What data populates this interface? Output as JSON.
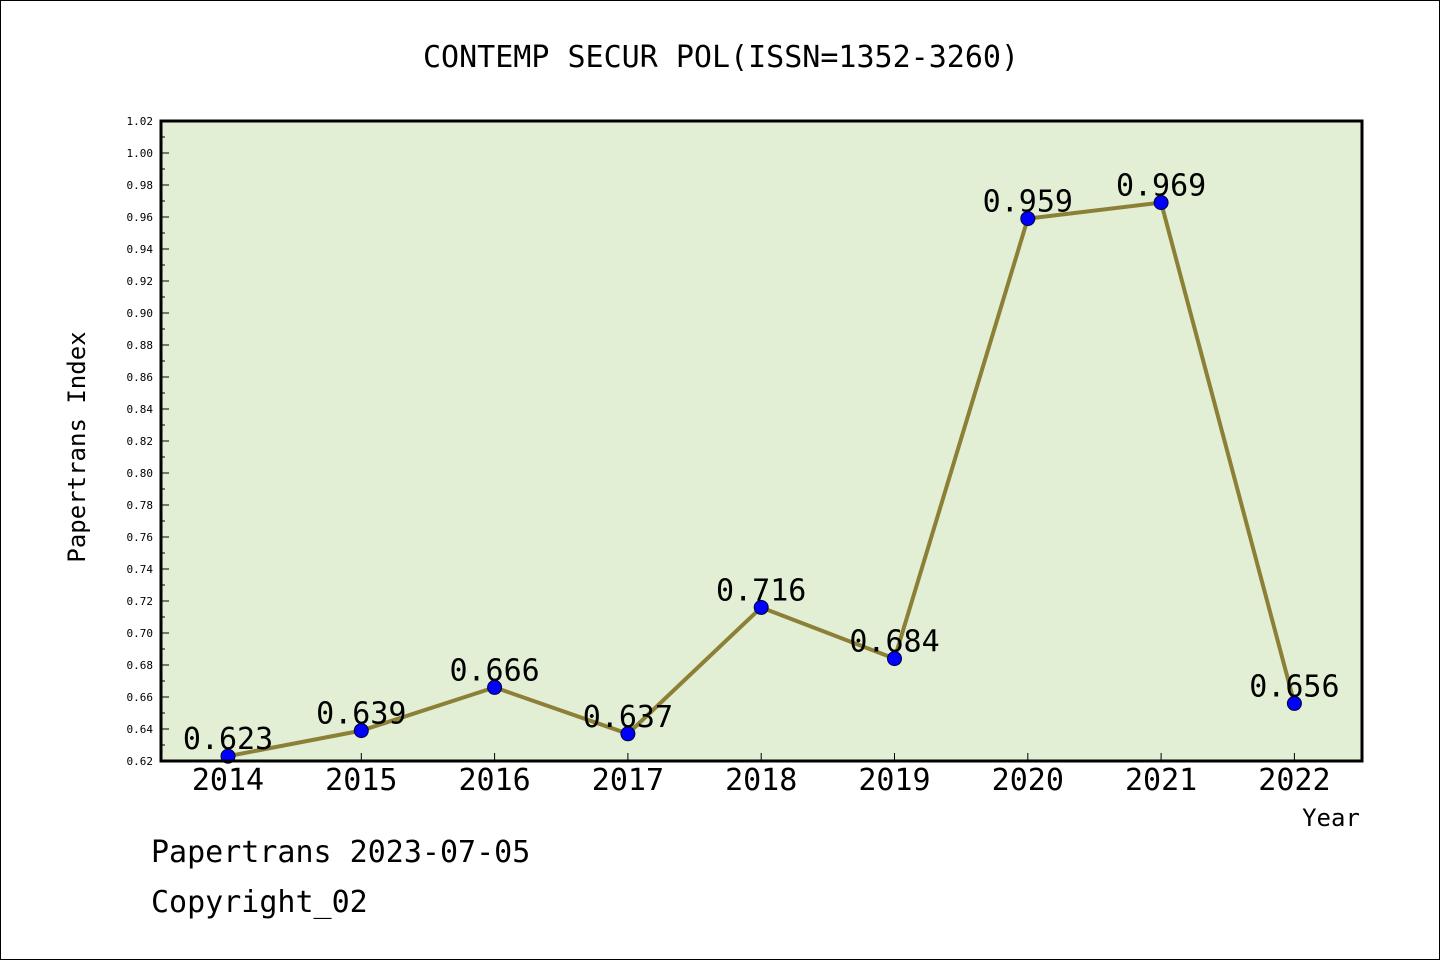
{
  "footer": {
    "line1": "Papertrans 2023-07-05",
    "line2": "Copyright_02"
  },
  "chart_data": {
    "type": "line",
    "title": "CONTEMP SECUR POL(ISSN=1352-3260)",
    "xlabel": "Year",
    "ylabel": "Papertrans Index",
    "categories": [
      "2014",
      "2015",
      "2016",
      "2017",
      "2018",
      "2019",
      "2020",
      "2021",
      "2022"
    ],
    "series": [
      {
        "values": [
          0.623,
          0.639,
          0.666,
          0.637,
          0.716,
          0.684,
          0.959,
          0.969,
          0.656
        ],
        "labels": [
          "0.623",
          "0.639",
          "0.666",
          "0.637",
          "0.716",
          "0.684",
          "0.959",
          "0.969",
          "0.656"
        ]
      }
    ],
    "ylim": [
      0.62,
      1.02
    ],
    "yticks": [
      "0.62",
      "0.64",
      "0.66",
      "0.68",
      "0.70",
      "0.72",
      "0.74",
      "0.76",
      "0.78",
      "0.80",
      "0.82",
      "0.84",
      "0.86",
      "0.88",
      "0.90",
      "0.92",
      "0.94",
      "0.96",
      "0.98",
      "1.00",
      "1.02"
    ],
    "grid": false,
    "colors": {
      "plot_background": "#e2efd5",
      "line": "#8b8035",
      "marker": "#0000ff"
    }
  }
}
